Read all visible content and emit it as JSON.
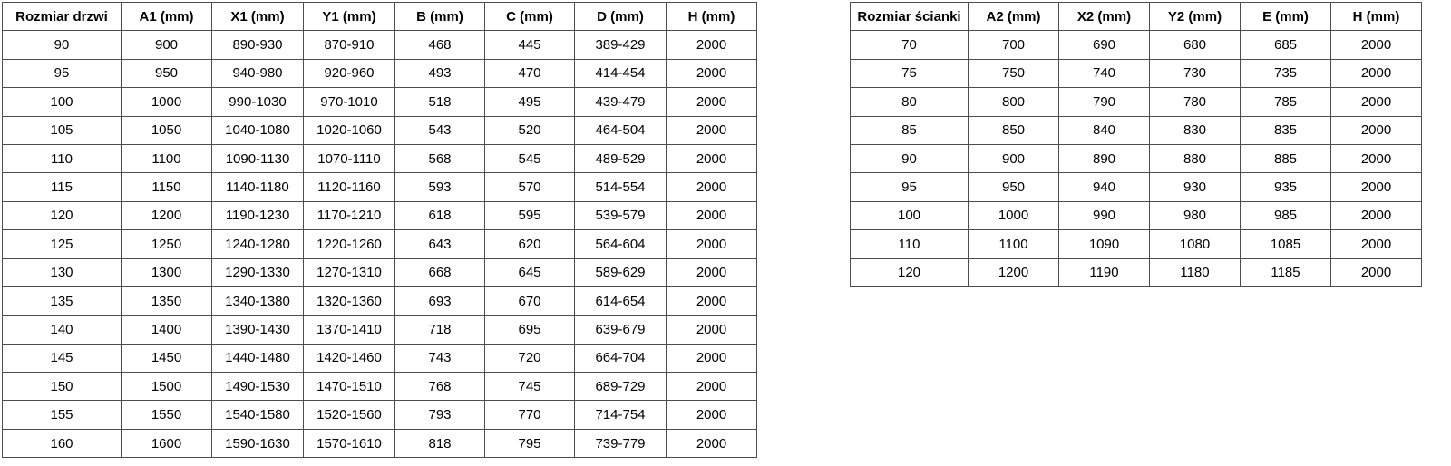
{
  "page": {
    "background": "#ffffff",
    "text_color": "#000000",
    "border_color": "#4d4d4d"
  },
  "door_table": {
    "headers": [
      "Rozmiar drzwi",
      "A1 (mm)",
      "X1 (mm)",
      "Y1 (mm)",
      "B (mm)",
      "C (mm)",
      "D (mm)",
      "H (mm)"
    ],
    "rows": [
      [
        "90",
        "900",
        "890-930",
        "870-910",
        "468",
        "445",
        "389-429",
        "2000"
      ],
      [
        "95",
        "950",
        "940-980",
        "920-960",
        "493",
        "470",
        "414-454",
        "2000"
      ],
      [
        "100",
        "1000",
        "990-1030",
        "970-1010",
        "518",
        "495",
        "439-479",
        "2000"
      ],
      [
        "105",
        "1050",
        "1040-1080",
        "1020-1060",
        "543",
        "520",
        "464-504",
        "2000"
      ],
      [
        "110",
        "1100",
        "1090-1130",
        "1070-1110",
        "568",
        "545",
        "489-529",
        "2000"
      ],
      [
        "115",
        "1150",
        "1140-1180",
        "1120-1160",
        "593",
        "570",
        "514-554",
        "2000"
      ],
      [
        "120",
        "1200",
        "1190-1230",
        "1170-1210",
        "618",
        "595",
        "539-579",
        "2000"
      ],
      [
        "125",
        "1250",
        "1240-1280",
        "1220-1260",
        "643",
        "620",
        "564-604",
        "2000"
      ],
      [
        "130",
        "1300",
        "1290-1330",
        "1270-1310",
        "668",
        "645",
        "589-629",
        "2000"
      ],
      [
        "135",
        "1350",
        "1340-1380",
        "1320-1360",
        "693",
        "670",
        "614-654",
        "2000"
      ],
      [
        "140",
        "1400",
        "1390-1430",
        "1370-1410",
        "718",
        "695",
        "639-679",
        "2000"
      ],
      [
        "145",
        "1450",
        "1440-1480",
        "1420-1460",
        "743",
        "720",
        "664-704",
        "2000"
      ],
      [
        "150",
        "1500",
        "1490-1530",
        "1470-1510",
        "768",
        "745",
        "689-729",
        "2000"
      ],
      [
        "155",
        "1550",
        "1540-1580",
        "1520-1560",
        "793",
        "770",
        "714-754",
        "2000"
      ],
      [
        "160",
        "1600",
        "1590-1630",
        "1570-1610",
        "818",
        "795",
        "739-779",
        "2000"
      ]
    ]
  },
  "wall_table": {
    "headers": [
      "Rozmiar ścianki",
      "A2 (mm)",
      "X2 (mm)",
      "Y2 (mm)",
      "E (mm)",
      "H (mm)"
    ],
    "rows": [
      [
        "70",
        "700",
        "690",
        "680",
        "685",
        "2000"
      ],
      [
        "75",
        "750",
        "740",
        "730",
        "735",
        "2000"
      ],
      [
        "80",
        "800",
        "790",
        "780",
        "785",
        "2000"
      ],
      [
        "85",
        "850",
        "840",
        "830",
        "835",
        "2000"
      ],
      [
        "90",
        "900",
        "890",
        "880",
        "885",
        "2000"
      ],
      [
        "95",
        "950",
        "940",
        "930",
        "935",
        "2000"
      ],
      [
        "100",
        "1000",
        "990",
        "980",
        "985",
        "2000"
      ],
      [
        "110",
        "1100",
        "1090",
        "1080",
        "1085",
        "2000"
      ],
      [
        "120",
        "1200",
        "1190",
        "1180",
        "1185",
        "2000"
      ]
    ]
  }
}
